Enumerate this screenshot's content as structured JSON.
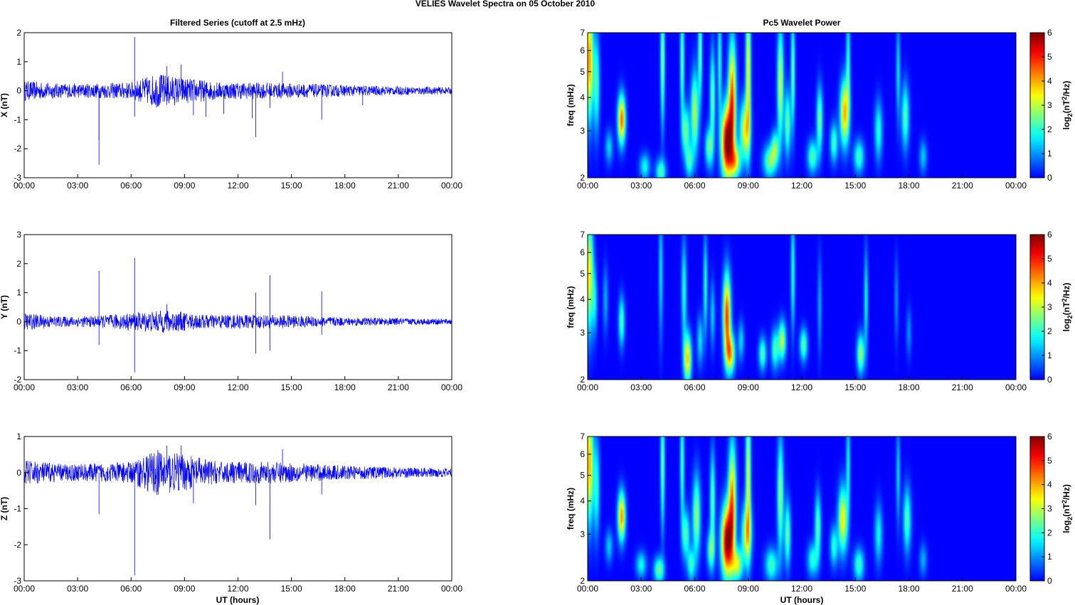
{
  "figure": {
    "title": "VELIES Wavelet Spectra on 05 October   2010",
    "left_title": "Filtered Series (cutoff at 2.5 mHz)",
    "right_title": "Pc5 Wavelet Power",
    "xlabel": "UT (hours)"
  },
  "chart_data": [
    {
      "type": "line",
      "panel": "x-filtered",
      "series": [
        {
          "name": "X",
          "color": "#0000ff"
        }
      ],
      "ylabel": "X (nT)",
      "x_ticks": [
        "00:00",
        "03:00",
        "06:00",
        "09:00",
        "12:00",
        "15:00",
        "18:00",
        "21:00",
        "00:00"
      ],
      "x_range_hours": [
        0,
        24
      ],
      "ylim": [
        -3,
        2
      ],
      "y_ticks": [
        2,
        1,
        0,
        -1,
        -2,
        -3
      ],
      "noise_envelope": [
        [
          0,
          0.35
        ],
        [
          2,
          0.25
        ],
        [
          4,
          0.25
        ],
        [
          6,
          0.3
        ],
        [
          7.5,
          0.6
        ],
        [
          9,
          0.45
        ],
        [
          11,
          0.3
        ],
        [
          14,
          0.28
        ],
        [
          18,
          0.2
        ],
        [
          21,
          0.15
        ],
        [
          24,
          0.12
        ]
      ],
      "spikes": [
        [
          4.2,
          -2.55
        ],
        [
          4.2,
          -1.7
        ],
        [
          6.2,
          1.85
        ],
        [
          6.2,
          -0.9
        ],
        [
          8.0,
          0.85
        ],
        [
          8.8,
          0.9
        ],
        [
          9.5,
          -0.85
        ],
        [
          10.2,
          -0.9
        ],
        [
          11.2,
          -0.8
        ],
        [
          12.8,
          -0.95
        ],
        [
          13.0,
          -1.6
        ],
        [
          13.8,
          -0.6
        ],
        [
          14.5,
          0.65
        ],
        [
          16.7,
          -1.0
        ],
        [
          19.0,
          -0.5
        ]
      ]
    },
    {
      "type": "line",
      "panel": "y-filtered",
      "series": [
        {
          "name": "Y",
          "color": "#0000ff"
        }
      ],
      "ylabel": "Y (nT)",
      "x_ticks": [
        "00:00",
        "03:00",
        "06:00",
        "09:00",
        "12:00",
        "15:00",
        "18:00",
        "21:00",
        "00:00"
      ],
      "x_range_hours": [
        0,
        24
      ],
      "ylim": [
        -2,
        3
      ],
      "y_ticks": [
        3,
        2,
        1,
        0,
        -1,
        -2
      ],
      "noise_envelope": [
        [
          0,
          0.3
        ],
        [
          2,
          0.18
        ],
        [
          4,
          0.2
        ],
        [
          6,
          0.3
        ],
        [
          8,
          0.4
        ],
        [
          10,
          0.25
        ],
        [
          12,
          0.25
        ],
        [
          15,
          0.22
        ],
        [
          18,
          0.15
        ],
        [
          21,
          0.12
        ],
        [
          24,
          0.1
        ]
      ],
      "spikes": [
        [
          4.2,
          1.75
        ],
        [
          4.2,
          -0.8
        ],
        [
          6.2,
          2.2
        ],
        [
          6.2,
          -1.75
        ],
        [
          8.0,
          0.6
        ],
        [
          13.0,
          1.0
        ],
        [
          13.0,
          -1.1
        ],
        [
          13.8,
          1.6
        ],
        [
          13.8,
          -1.0
        ],
        [
          16.7,
          1.05
        ],
        [
          16.7,
          -0.45
        ]
      ]
    },
    {
      "type": "line",
      "panel": "z-filtered",
      "series": [
        {
          "name": "Z",
          "color": "#0000ff"
        }
      ],
      "ylabel": "Z (nT)",
      "x_ticks": [
        "00:00",
        "03:00",
        "06:00",
        "09:00",
        "12:00",
        "15:00",
        "18:00",
        "21:00",
        "00:00"
      ],
      "x_range_hours": [
        0,
        24
      ],
      "ylim": [
        -3,
        1
      ],
      "y_ticks": [
        1,
        0,
        -1,
        -2,
        -3
      ],
      "noise_envelope": [
        [
          0,
          0.35
        ],
        [
          2,
          0.25
        ],
        [
          4,
          0.25
        ],
        [
          6,
          0.3
        ],
        [
          7.5,
          0.65
        ],
        [
          9,
          0.5
        ],
        [
          11,
          0.3
        ],
        [
          14,
          0.3
        ],
        [
          18,
          0.2
        ],
        [
          21,
          0.15
        ],
        [
          24,
          0.12
        ]
      ],
      "spikes": [
        [
          4.2,
          -1.15
        ],
        [
          6.2,
          -2.85
        ],
        [
          8.0,
          0.75
        ],
        [
          8.8,
          0.75
        ],
        [
          9.5,
          -0.85
        ],
        [
          13.0,
          -0.9
        ],
        [
          13.8,
          -1.85
        ],
        [
          14.5,
          0.65
        ],
        [
          16.7,
          -0.6
        ]
      ]
    },
    {
      "type": "heatmap",
      "panel": "x-wavelet",
      "ylabel": "freq (mHz)",
      "y_scale": "log",
      "ylim": [
        2,
        7
      ],
      "y_ticks": [
        2,
        3,
        4,
        5,
        6,
        7
      ],
      "x_ticks": [
        "00:00",
        "03:00",
        "06:00",
        "09:00",
        "12:00",
        "15:00",
        "18:00",
        "21:00",
        "00:00"
      ],
      "x_range_hours": [
        0,
        24
      ],
      "colorbar": {
        "label_base": "log",
        "label_sub": "2",
        "label_unit": "(nT",
        "label_sup": "2",
        "label_end": "/Hz)",
        "range": [
          0,
          6
        ],
        "ticks": [
          0,
          1,
          2,
          3,
          4,
          5,
          6
        ],
        "colormap": "jet"
      },
      "blobs": [
        {
          "t": 0.1,
          "f": 5.5,
          "p": 4.2,
          "w": 0.15,
          "h": 0.35
        },
        {
          "t": 0.5,
          "f": 4.5,
          "p": 2.2,
          "w": 0.12,
          "h": 0.3
        },
        {
          "t": 1.9,
          "f": 3.3,
          "p": 4.5,
          "w": 0.15,
          "h": 0.15
        },
        {
          "t": 1.2,
          "f": 2.6,
          "p": 1.5,
          "w": 0.15,
          "h": 0.1
        },
        {
          "t": 3.2,
          "f": 2.2,
          "p": 1.8,
          "w": 0.2,
          "h": 0.08
        },
        {
          "t": 4.1,
          "f": 2.1,
          "p": 2.2,
          "w": 0.2,
          "h": 0.08
        },
        {
          "t": 4.2,
          "f": 5.5,
          "p": 2.8,
          "w": 0.08,
          "h": 0.4
        },
        {
          "t": 5.3,
          "f": 5.5,
          "p": 2.5,
          "w": 0.08,
          "h": 0.35
        },
        {
          "t": 5.5,
          "f": 3.0,
          "p": 2.5,
          "w": 0.15,
          "h": 0.15
        },
        {
          "t": 5.7,
          "f": 2.3,
          "p": 2.0,
          "w": 0.15,
          "h": 0.1
        },
        {
          "t": 6.0,
          "f": 3.5,
          "p": 3.0,
          "w": 0.15,
          "h": 0.25
        },
        {
          "t": 6.3,
          "f": 6.0,
          "p": 2.5,
          "w": 0.08,
          "h": 0.3
        },
        {
          "t": 6.8,
          "f": 2.6,
          "p": 2.4,
          "w": 0.15,
          "h": 0.12
        },
        {
          "t": 7.0,
          "f": 4.0,
          "p": 2.5,
          "w": 0.1,
          "h": 0.3
        },
        {
          "t": 7.4,
          "f": 5.5,
          "p": 2.0,
          "w": 0.08,
          "h": 0.35
        },
        {
          "t": 7.8,
          "f": 2.7,
          "p": 6.0,
          "w": 0.22,
          "h": 0.22
        },
        {
          "t": 8.1,
          "f": 4.0,
          "p": 4.5,
          "w": 0.15,
          "h": 0.35
        },
        {
          "t": 8.3,
          "f": 2.3,
          "p": 3.0,
          "w": 0.2,
          "h": 0.1
        },
        {
          "t": 8.8,
          "f": 3.0,
          "p": 3.2,
          "w": 0.2,
          "h": 0.18
        },
        {
          "t": 9.0,
          "f": 5.0,
          "p": 3.5,
          "w": 0.1,
          "h": 0.45
        },
        {
          "t": 10.2,
          "f": 2.3,
          "p": 2.5,
          "w": 0.25,
          "h": 0.1
        },
        {
          "t": 10.5,
          "f": 2.6,
          "p": 2.3,
          "w": 0.15,
          "h": 0.1
        },
        {
          "t": 10.8,
          "f": 4.5,
          "p": 3.2,
          "w": 0.12,
          "h": 0.35
        },
        {
          "t": 11.2,
          "f": 3.2,
          "p": 2.5,
          "w": 0.12,
          "h": 0.2
        },
        {
          "t": 11.5,
          "f": 5.0,
          "p": 2.5,
          "w": 0.08,
          "h": 0.35
        },
        {
          "t": 12.6,
          "f": 2.4,
          "p": 2.3,
          "w": 0.2,
          "h": 0.1
        },
        {
          "t": 13.0,
          "f": 3.3,
          "p": 2.6,
          "w": 0.12,
          "h": 0.2
        },
        {
          "t": 13.8,
          "f": 2.7,
          "p": 2.2,
          "w": 0.15,
          "h": 0.12
        },
        {
          "t": 14.4,
          "f": 3.5,
          "p": 4.0,
          "w": 0.18,
          "h": 0.2
        },
        {
          "t": 14.6,
          "f": 5.5,
          "p": 2.0,
          "w": 0.08,
          "h": 0.3
        },
        {
          "t": 15.2,
          "f": 2.4,
          "p": 2.2,
          "w": 0.2,
          "h": 0.1
        },
        {
          "t": 16.3,
          "f": 3.0,
          "p": 2.0,
          "w": 0.15,
          "h": 0.18
        },
        {
          "t": 17.4,
          "f": 5.0,
          "p": 1.6,
          "w": 0.08,
          "h": 0.3
        },
        {
          "t": 17.8,
          "f": 3.4,
          "p": 2.3,
          "w": 0.15,
          "h": 0.2
        },
        {
          "t": 18.8,
          "f": 2.4,
          "p": 1.4,
          "w": 0.15,
          "h": 0.1
        }
      ]
    },
    {
      "type": "heatmap",
      "panel": "y-wavelet",
      "ylabel": "freq (mHz)",
      "y_scale": "log",
      "ylim": [
        2,
        7
      ],
      "y_ticks": [
        2,
        3,
        4,
        5,
        6,
        7
      ],
      "x_ticks": [
        "00:00",
        "03:00",
        "06:00",
        "09:00",
        "12:00",
        "15:00",
        "18:00",
        "21:00",
        "00:00"
      ],
      "x_range_hours": [
        0,
        24
      ],
      "colorbar": {
        "label_base": "log",
        "label_sub": "2",
        "label_unit": "(nT",
        "label_sup": "2",
        "label_end": "/Hz)",
        "range": [
          0,
          6
        ],
        "ticks": [
          0,
          1,
          2,
          3,
          4,
          5,
          6
        ],
        "colormap": "jet"
      },
      "blobs": [
        {
          "t": 0.1,
          "f": 5.0,
          "p": 3.5,
          "w": 0.15,
          "h": 0.35
        },
        {
          "t": 0.4,
          "f": 3.9,
          "p": 1.5,
          "w": 0.1,
          "h": 0.2
        },
        {
          "t": 1.0,
          "f": 4.0,
          "p": 1.2,
          "w": 0.1,
          "h": 0.2
        },
        {
          "t": 1.9,
          "f": 3.3,
          "p": 2.3,
          "w": 0.12,
          "h": 0.15
        },
        {
          "t": 4.1,
          "f": 5.0,
          "p": 1.6,
          "w": 0.08,
          "h": 0.4
        },
        {
          "t": 5.6,
          "f": 2.4,
          "p": 3.8,
          "w": 0.15,
          "h": 0.15
        },
        {
          "t": 5.4,
          "f": 4.3,
          "p": 2.0,
          "w": 0.1,
          "h": 0.3
        },
        {
          "t": 6.3,
          "f": 2.8,
          "p": 1.6,
          "w": 0.12,
          "h": 0.15
        },
        {
          "t": 6.6,
          "f": 4.5,
          "p": 2.0,
          "w": 0.08,
          "h": 0.3
        },
        {
          "t": 7.0,
          "f": 3.5,
          "p": 1.4,
          "w": 0.1,
          "h": 0.2
        },
        {
          "t": 7.8,
          "f": 3.5,
          "p": 4.8,
          "w": 0.15,
          "h": 0.25
        },
        {
          "t": 8.0,
          "f": 2.5,
          "p": 3.6,
          "w": 0.18,
          "h": 0.12
        },
        {
          "t": 8.6,
          "f": 2.8,
          "p": 1.5,
          "w": 0.12,
          "h": 0.12
        },
        {
          "t": 9.8,
          "f": 2.5,
          "p": 2.3,
          "w": 0.15,
          "h": 0.1
        },
        {
          "t": 10.5,
          "f": 2.6,
          "p": 2.2,
          "w": 0.15,
          "h": 0.12
        },
        {
          "t": 10.9,
          "f": 2.8,
          "p": 3.0,
          "w": 0.15,
          "h": 0.12
        },
        {
          "t": 11.5,
          "f": 5.0,
          "p": 2.0,
          "w": 0.08,
          "h": 0.35
        },
        {
          "t": 12.1,
          "f": 2.7,
          "p": 2.4,
          "w": 0.15,
          "h": 0.1
        },
        {
          "t": 13.0,
          "f": 3.8,
          "p": 1.2,
          "w": 0.08,
          "h": 0.3
        },
        {
          "t": 15.3,
          "f": 2.5,
          "p": 2.8,
          "w": 0.15,
          "h": 0.12
        },
        {
          "t": 15.6,
          "f": 4.0,
          "p": 1.8,
          "w": 0.08,
          "h": 0.3
        },
        {
          "t": 17.3,
          "f": 4.0,
          "p": 1.0,
          "w": 0.08,
          "h": 0.25
        },
        {
          "t": 18.0,
          "f": 3.0,
          "p": 1.0,
          "w": 0.1,
          "h": 0.15
        }
      ]
    },
    {
      "type": "heatmap",
      "panel": "z-wavelet",
      "ylabel": "freq (mHz)",
      "y_scale": "log",
      "ylim": [
        2,
        7
      ],
      "y_ticks": [
        2,
        3,
        4,
        5,
        6,
        7
      ],
      "x_ticks": [
        "00:00",
        "03:00",
        "06:00",
        "09:00",
        "12:00",
        "15:00",
        "18:00",
        "21:00",
        "00:00"
      ],
      "x_range_hours": [
        0,
        24
      ],
      "colorbar": {
        "label_base": "log",
        "label_sub": "2",
        "label_unit": "(nT",
        "label_sup": "2",
        "label_end": "/Hz)",
        "range": [
          0,
          6
        ],
        "ticks": [
          0,
          1,
          2,
          3,
          4,
          5,
          6
        ],
        "colormap": "jet"
      },
      "blobs": [
        {
          "t": 0.1,
          "f": 5.5,
          "p": 4.0,
          "w": 0.15,
          "h": 0.35
        },
        {
          "t": 0.5,
          "f": 4.5,
          "p": 2.0,
          "w": 0.12,
          "h": 0.3
        },
        {
          "t": 1.9,
          "f": 3.5,
          "p": 4.2,
          "w": 0.15,
          "h": 0.15
        },
        {
          "t": 1.2,
          "f": 2.7,
          "p": 1.4,
          "w": 0.15,
          "h": 0.1
        },
        {
          "t": 3.0,
          "f": 2.3,
          "p": 1.8,
          "w": 0.2,
          "h": 0.08
        },
        {
          "t": 4.0,
          "f": 2.2,
          "p": 2.5,
          "w": 0.2,
          "h": 0.08
        },
        {
          "t": 4.2,
          "f": 5.5,
          "p": 2.6,
          "w": 0.08,
          "h": 0.4
        },
        {
          "t": 5.3,
          "f": 5.5,
          "p": 2.3,
          "w": 0.08,
          "h": 0.35
        },
        {
          "t": 5.5,
          "f": 3.0,
          "p": 2.3,
          "w": 0.15,
          "h": 0.15
        },
        {
          "t": 5.8,
          "f": 2.3,
          "p": 2.0,
          "w": 0.15,
          "h": 0.1
        },
        {
          "t": 6.1,
          "f": 3.5,
          "p": 2.8,
          "w": 0.15,
          "h": 0.25
        },
        {
          "t": 6.9,
          "f": 2.6,
          "p": 2.2,
          "w": 0.15,
          "h": 0.12
        },
        {
          "t": 7.0,
          "f": 4.0,
          "p": 2.4,
          "w": 0.1,
          "h": 0.3
        },
        {
          "t": 7.8,
          "f": 2.8,
          "p": 5.8,
          "w": 0.22,
          "h": 0.22
        },
        {
          "t": 8.1,
          "f": 4.0,
          "p": 4.2,
          "w": 0.15,
          "h": 0.35
        },
        {
          "t": 8.4,
          "f": 2.3,
          "p": 3.0,
          "w": 0.2,
          "h": 0.1
        },
        {
          "t": 8.9,
          "f": 3.0,
          "p": 3.0,
          "w": 0.2,
          "h": 0.18
        },
        {
          "t": 9.0,
          "f": 5.0,
          "p": 3.2,
          "w": 0.1,
          "h": 0.45
        },
        {
          "t": 10.3,
          "f": 2.3,
          "p": 2.2,
          "w": 0.25,
          "h": 0.1
        },
        {
          "t": 10.8,
          "f": 4.2,
          "p": 2.8,
          "w": 0.12,
          "h": 0.35
        },
        {
          "t": 11.2,
          "f": 3.0,
          "p": 2.5,
          "w": 0.12,
          "h": 0.2
        },
        {
          "t": 12.6,
          "f": 2.4,
          "p": 2.0,
          "w": 0.2,
          "h": 0.1
        },
        {
          "t": 12.9,
          "f": 3.2,
          "p": 2.4,
          "w": 0.12,
          "h": 0.2
        },
        {
          "t": 13.8,
          "f": 2.7,
          "p": 2.0,
          "w": 0.15,
          "h": 0.12
        },
        {
          "t": 14.3,
          "f": 3.4,
          "p": 3.6,
          "w": 0.18,
          "h": 0.2
        },
        {
          "t": 14.6,
          "f": 5.5,
          "p": 1.8,
          "w": 0.08,
          "h": 0.3
        },
        {
          "t": 15.2,
          "f": 2.3,
          "p": 2.2,
          "w": 0.2,
          "h": 0.1
        },
        {
          "t": 16.3,
          "f": 3.0,
          "p": 1.8,
          "w": 0.15,
          "h": 0.18
        },
        {
          "t": 17.4,
          "f": 5.0,
          "p": 1.5,
          "w": 0.08,
          "h": 0.3
        },
        {
          "t": 17.9,
          "f": 3.4,
          "p": 2.3,
          "w": 0.15,
          "h": 0.2
        },
        {
          "t": 18.8,
          "f": 2.4,
          "p": 1.2,
          "w": 0.15,
          "h": 0.1
        }
      ]
    }
  ]
}
